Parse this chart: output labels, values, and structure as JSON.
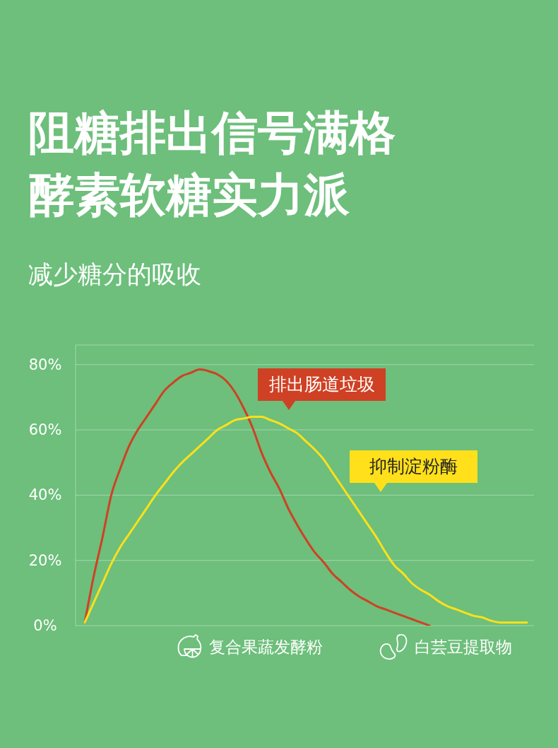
{
  "chart_data": {
    "type": "line",
    "title": "阻糖排出信号满格酵素软糖实力派",
    "subtitle": "减少糖分的吸收",
    "annotations": [
      "复合果蔬发酵粉",
      "白芸豆提取物"
    ],
    "categories": [
      null,
      null,
      null,
      null,
      null,
      null,
      null,
      null,
      null,
      null,
      null,
      null,
      null,
      null,
      null,
      null,
      null,
      null,
      null,
      null,
      null,
      null,
      null,
      null,
      null,
      null,
      null,
      null,
      null,
      null,
      null,
      null,
      null,
      null,
      null,
      null,
      null,
      null,
      null,
      null,
      null,
      null,
      null,
      null,
      null,
      null,
      null,
      null,
      null,
      null,
      null
    ],
    "series": [
      {
        "name": "排出肠道垃圾",
        "color": "#cf4124",
        "values": [
          1,
          15,
          27,
          40,
          48,
          55,
          60,
          64,
          68,
          72,
          74.5,
          76.5,
          77.5,
          78.5,
          78,
          77,
          75,
          71.5,
          66.5,
          60.5,
          53,
          47,
          42,
          36,
          31,
          26.5,
          22.5,
          19.5,
          16,
          13.5,
          11,
          9,
          7.5,
          6,
          5,
          4,
          3,
          2,
          1,
          0,
          null,
          null,
          null,
          null,
          null,
          null,
          null,
          null,
          null,
          null,
          null
        ]
      },
      {
        "name": "抑制淀粉酶",
        "color": "#ffe01a",
        "values": [
          1,
          7,
          13,
          19,
          24,
          28,
          32,
          36,
          40,
          43.5,
          47,
          50,
          52.5,
          55,
          57.5,
          60,
          61.5,
          63,
          63.5,
          64,
          64,
          63,
          62,
          60.5,
          59,
          56.5,
          54,
          51,
          47,
          43,
          39,
          35,
          31,
          27,
          22.5,
          18.5,
          16,
          13,
          11,
          9.5,
          7.5,
          6,
          5,
          4,
          3,
          2.5,
          1.5,
          1,
          1,
          1,
          1
        ]
      }
    ],
    "ylim": [
      0,
      86
    ],
    "yticks": [
      {
        "value": 0,
        "label": "0%"
      },
      {
        "value": 20,
        "label": "20%"
      },
      {
        "value": 40,
        "label": "40%"
      },
      {
        "value": 60,
        "label": "60%"
      },
      {
        "value": 80,
        "label": "80%"
      }
    ],
    "grid": "y",
    "marker": "none",
    "line_style": "solid"
  }
}
